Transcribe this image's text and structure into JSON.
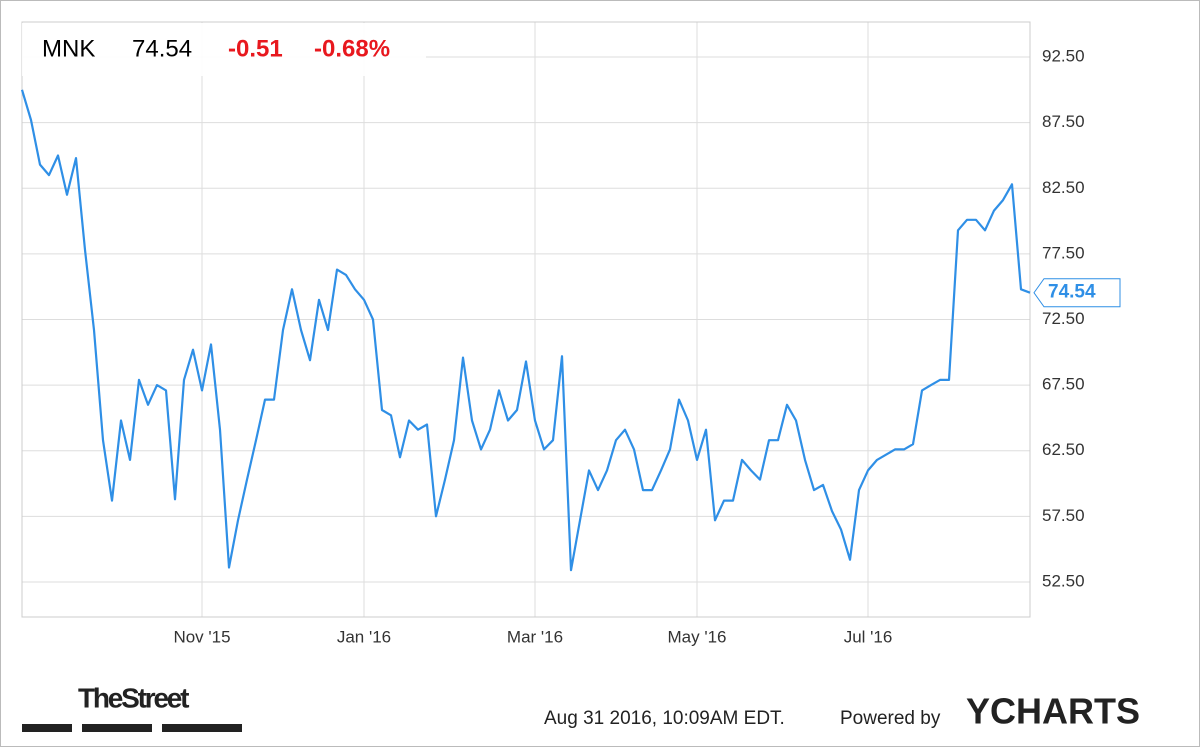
{
  "chart_data": {
    "type": "line",
    "symbol": "MNK",
    "price": "74.54",
    "change": "-0.51",
    "change_pct": "-0.68%",
    "timestamp": "Aug 31 2016, 10:09AM EDT.",
    "powered_by": "Powered by",
    "brand": "YCHARTS",
    "publisher": "TheStreet",
    "color": "#2f8fe6",
    "change_color": "#e8181e",
    "grid": true,
    "categories": [
      null,
      null,
      null,
      null,
      null,
      null,
      null,
      null,
      null,
      null,
      null,
      null,
      null,
      null,
      null,
      null,
      null,
      null,
      null,
      null,
      "Nov '15",
      null,
      null,
      null,
      null,
      null,
      null,
      null,
      null,
      null,
      null,
      null,
      null,
      null,
      null,
      null,
      null,
      null,
      "Jan '16",
      null,
      null,
      null,
      null,
      null,
      null,
      null,
      null,
      null,
      null,
      null,
      null,
      null,
      null,
      null,
      null,
      null,
      null,
      "Mar '16",
      null,
      null,
      null,
      null,
      null,
      null,
      null,
      null,
      null,
      null,
      null,
      null,
      null,
      null,
      null,
      null,
      null,
      "May '16",
      null,
      null,
      null,
      null,
      null,
      null,
      null,
      null,
      null,
      null,
      null,
      null,
      null,
      null,
      null,
      null,
      null,
      null,
      "Jul '16",
      null,
      null,
      null,
      null,
      null,
      null,
      null,
      null,
      null,
      null,
      null,
      null,
      null,
      null,
      null,
      null,
      null,
      null
    ],
    "values": [
      90.0,
      87.7,
      84.3,
      83.5,
      85.0,
      82.0,
      84.8,
      77.8,
      71.7,
      63.3,
      58.7,
      64.8,
      61.8,
      67.9,
      66.0,
      67.5,
      67.1,
      58.8,
      67.9,
      70.2,
      67.1,
      70.6,
      64.1,
      53.6,
      57.2,
      60.3,
      63.3,
      66.4,
      66.4,
      71.7,
      74.8,
      71.7,
      69.4,
      74.0,
      71.7,
      76.3,
      75.9,
      74.8,
      74.0,
      72.5,
      65.6,
      65.2,
      62.0,
      64.8,
      64.1,
      64.5,
      57.5,
      60.3,
      63.3,
      69.6,
      64.8,
      62.6,
      64.1,
      67.1,
      64.8,
      65.6,
      69.3,
      64.8,
      62.6,
      63.3,
      69.7,
      53.4,
      57.2,
      61.0,
      59.5,
      61.0,
      63.3,
      64.1,
      62.6,
      59.5,
      59.5,
      61.0,
      62.6,
      66.4,
      64.8,
      61.8,
      64.1,
      57.2,
      58.7,
      58.7,
      61.8,
      61.0,
      60.3,
      63.3,
      63.3,
      66.0,
      64.8,
      61.8,
      59.5,
      59.9,
      57.9,
      56.5,
      54.2,
      59.5,
      61.0,
      61.8,
      62.2,
      62.6,
      62.6,
      63.0,
      67.1,
      67.5,
      67.9,
      67.9,
      79.3,
      80.1,
      80.1,
      79.3,
      80.8,
      81.6,
      82.8,
      74.8,
      74.54
    ],
    "ylim": [
      49.83,
      95.17
    ],
    "yticks": [
      {
        "value": 52.5,
        "label": "52.50"
      },
      {
        "value": 57.5,
        "label": "57.50"
      },
      {
        "value": 62.5,
        "label": "62.50"
      },
      {
        "value": 67.5,
        "label": "67.50"
      },
      {
        "value": 72.5,
        "label": "72.50"
      },
      {
        "value": 77.5,
        "label": "77.50"
      },
      {
        "value": 82.5,
        "label": "82.50"
      },
      {
        "value": 87.5,
        "label": "87.50"
      },
      {
        "value": 92.5,
        "label": "92.50"
      }
    ]
  }
}
